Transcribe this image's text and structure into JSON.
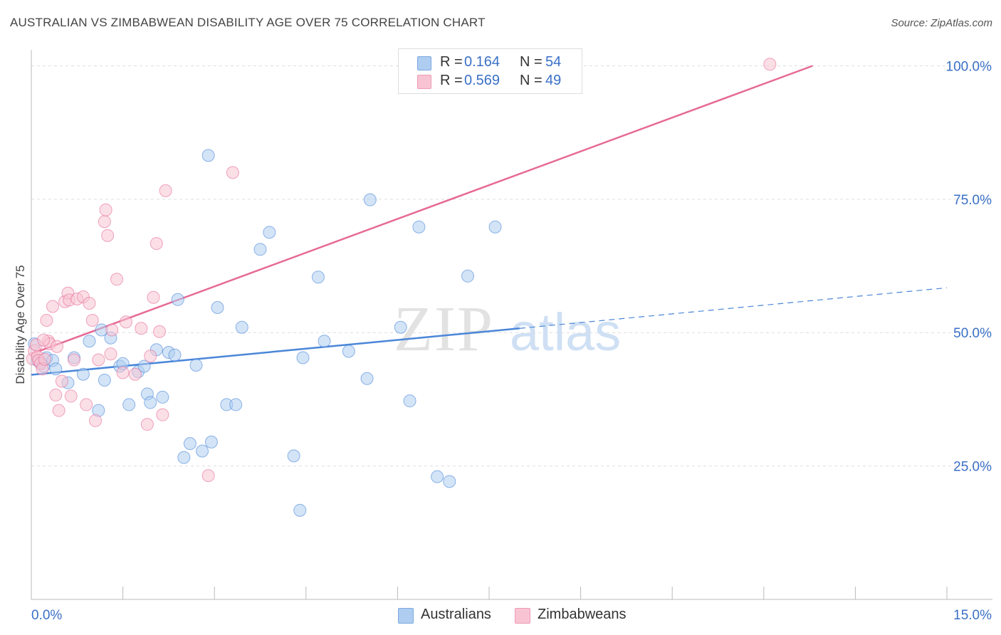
{
  "title": "AUSTRALIAN VS ZIMBABWEAN DISABILITY AGE OVER 75 CORRELATION CHART",
  "source": "Source: ZipAtlas.com",
  "watermark": {
    "zip": "ZIP",
    "atlas": "atlas"
  },
  "legend": {
    "rows": [
      {
        "r_label": "R =",
        "r_value": "0.164",
        "n_label": "N =",
        "n_value": "54",
        "color": "#aecdf0",
        "border": "#7aa9e0"
      },
      {
        "r_label": "R =",
        "r_value": "0.569",
        "n_label": "N =",
        "n_value": "49",
        "color": "#f8c4d4",
        "border": "#ee9ab4"
      }
    ]
  },
  "bottom_legend": [
    {
      "label": "Australians",
      "color": "#aecdf0",
      "border": "#7aa9e0"
    },
    {
      "label": "Zimbabweans",
      "color": "#f8c4d4",
      "border": "#ee9ab4"
    }
  ],
  "chart_data": {
    "type": "scatter",
    "ylabel": "Disability Age Over 75",
    "xlabel": "",
    "xlim": [
      0,
      15
    ],
    "ylim": [
      0,
      103
    ],
    "x_tick_labels": [
      {
        "value": 0,
        "label": "0.0%"
      },
      {
        "value": 15,
        "label": "15.0%"
      }
    ],
    "y_tick_labels": [
      {
        "value": 25,
        "label": "25.0%"
      },
      {
        "value": 50,
        "label": "50.0%"
      },
      {
        "value": 75,
        "label": "75.0%"
      },
      {
        "value": 100,
        "label": "100.0%"
      }
    ],
    "y_gridlines": [
      25,
      50,
      75,
      100
    ],
    "series": [
      {
        "name": "Australians",
        "color": "#4a86d8",
        "fill": "#aecdf0",
        "trend": {
          "x0": 0,
          "y0": 42.1,
          "x1": 8.0,
          "y1": 50.8,
          "dash_to_x": 15,
          "dash_to_y": 58.4
        },
        "points": [
          [
            0.05,
            47.9
          ],
          [
            0.1,
            44.8
          ],
          [
            0.15,
            44.4
          ],
          [
            0.2,
            43.7
          ],
          [
            0.25,
            45.3
          ],
          [
            0.35,
            44.8
          ],
          [
            0.4,
            43.2
          ],
          [
            0.6,
            40.6
          ],
          [
            0.7,
            45.3
          ],
          [
            0.85,
            42.2
          ],
          [
            0.95,
            48.4
          ],
          [
            1.1,
            35.4
          ],
          [
            1.15,
            50.5
          ],
          [
            1.2,
            41.1
          ],
          [
            1.3,
            49.0
          ],
          [
            1.45,
            43.7
          ],
          [
            1.5,
            44.2
          ],
          [
            1.6,
            36.5
          ],
          [
            1.75,
            42.7
          ],
          [
            1.85,
            43.7
          ],
          [
            1.9,
            38.5
          ],
          [
            1.95,
            36.9
          ],
          [
            2.05,
            46.8
          ],
          [
            2.15,
            37.9
          ],
          [
            2.25,
            46.3
          ],
          [
            2.35,
            45.8
          ],
          [
            2.4,
            56.2
          ],
          [
            2.5,
            26.6
          ],
          [
            2.6,
            29.2
          ],
          [
            2.7,
            43.9
          ],
          [
            2.8,
            27.8
          ],
          [
            2.9,
            83.2
          ],
          [
            2.95,
            29.5
          ],
          [
            3.05,
            54.7
          ],
          [
            3.2,
            36.5
          ],
          [
            3.35,
            36.5
          ],
          [
            3.45,
            51.0
          ],
          [
            3.75,
            65.6
          ],
          [
            3.9,
            68.8
          ],
          [
            4.3,
            26.9
          ],
          [
            4.4,
            16.7
          ],
          [
            4.45,
            45.3
          ],
          [
            4.7,
            60.4
          ],
          [
            4.8,
            48.4
          ],
          [
            5.2,
            46.5
          ],
          [
            5.5,
            41.4
          ],
          [
            5.55,
            74.9
          ],
          [
            6.05,
            51.0
          ],
          [
            6.2,
            37.2
          ],
          [
            6.35,
            69.8
          ],
          [
            6.65,
            23.0
          ],
          [
            6.85,
            22.1
          ],
          [
            7.15,
            60.6
          ],
          [
            7.6,
            69.8
          ]
        ]
      },
      {
        "name": "Zimbabweans",
        "color": "#e66a96",
        "fill": "#f8c4d4",
        "trend": {
          "x0": 0,
          "y0": 46.0,
          "x1": 12.8,
          "y1": 100.0
        },
        "points": [
          [
            0.02,
            45.1
          ],
          [
            0.05,
            46.6
          ],
          [
            0.08,
            47.7
          ],
          [
            0.1,
            45.5
          ],
          [
            0.12,
            44.8
          ],
          [
            0.15,
            44.2
          ],
          [
            0.18,
            43.2
          ],
          [
            0.22,
            45.0
          ],
          [
            0.25,
            52.3
          ],
          [
            0.28,
            48.4
          ],
          [
            0.3,
            47.9
          ],
          [
            0.35,
            54.9
          ],
          [
            0.4,
            38.3
          ],
          [
            0.42,
            47.4
          ],
          [
            0.45,
            35.4
          ],
          [
            0.5,
            40.9
          ],
          [
            0.55,
            55.8
          ],
          [
            0.6,
            57.4
          ],
          [
            0.62,
            56.1
          ],
          [
            0.65,
            38.1
          ],
          [
            0.7,
            44.9
          ],
          [
            0.75,
            56.3
          ],
          [
            0.85,
            56.7
          ],
          [
            0.9,
            36.5
          ],
          [
            0.95,
            55.5
          ],
          [
            1.0,
            52.3
          ],
          [
            1.05,
            33.5
          ],
          [
            1.1,
            44.9
          ],
          [
            1.2,
            70.8
          ],
          [
            1.22,
            73.0
          ],
          [
            1.25,
            68.2
          ],
          [
            1.3,
            46.0
          ],
          [
            1.32,
            50.5
          ],
          [
            1.4,
            60.0
          ],
          [
            1.5,
            42.5
          ],
          [
            1.55,
            52.0
          ],
          [
            1.7,
            42.2
          ],
          [
            1.8,
            50.8
          ],
          [
            1.9,
            32.8
          ],
          [
            1.95,
            45.6
          ],
          [
            2.0,
            56.6
          ],
          [
            2.05,
            66.7
          ],
          [
            2.1,
            50.2
          ],
          [
            2.15,
            34.6
          ],
          [
            2.2,
            76.6
          ],
          [
            2.9,
            23.2
          ],
          [
            3.3,
            80.0
          ],
          [
            12.1,
            100.3
          ],
          [
            0.2,
            48.6
          ]
        ]
      }
    ]
  }
}
